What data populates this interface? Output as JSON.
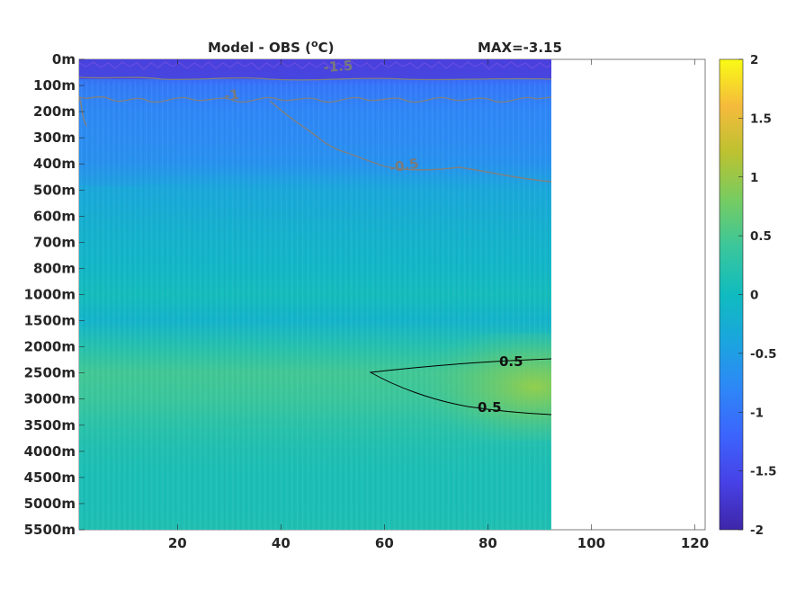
{
  "chart_data": {
    "type": "heatmap",
    "title": "Model - OBS (",
    "title_unit_sup": "o",
    "title_unit_tail": "C)",
    "max_label": "MAX=-3.15",
    "xlim": [
      1,
      122
    ],
    "data_x_extent": [
      1,
      91
    ],
    "xticks": [
      {
        "value": 20,
        "label": "20"
      },
      {
        "value": 40,
        "label": "40"
      },
      {
        "value": 60,
        "label": "60"
      },
      {
        "value": 80,
        "label": "80"
      },
      {
        "value": 100,
        "label": "100"
      },
      {
        "value": 120,
        "label": "120"
      }
    ],
    "ytick_labels": [
      "0m",
      "100m",
      "200m",
      "300m",
      "400m",
      "500m",
      "600m",
      "700m",
      "800m",
      "1000m",
      "1500m",
      "2000m",
      "2500m",
      "3000m",
      "3500m",
      "4000m",
      "4500m",
      "5000m",
      "5500m"
    ],
    "colorbar": {
      "range": [
        -2,
        2
      ],
      "ticks": [
        {
          "value": 2,
          "label": "2"
        },
        {
          "value": 1.5,
          "label": "1.5"
        },
        {
          "value": 1,
          "label": "1"
        },
        {
          "value": 0.5,
          "label": "0.5"
        },
        {
          "value": 0,
          "label": "0"
        },
        {
          "value": -0.5,
          "label": "-0.5"
        },
        {
          "value": -1,
          "label": "-1"
        },
        {
          "value": -1.5,
          "label": "-1.5"
        },
        {
          "value": -2,
          "label": "-2"
        }
      ],
      "colormap": "parula",
      "stops": [
        "#3e26a8",
        "#4741e6",
        "#3c64fd",
        "#2e87f7",
        "#1ba5de",
        "#10bbbf",
        "#3ac69c",
        "#76cc62",
        "#bbc231",
        "#f5ba3c",
        "#f9fb15"
      ]
    },
    "depth_profile": [
      {
        "depth": "0m",
        "value": -1.6
      },
      {
        "depth": "100m",
        "value": -1.0
      },
      {
        "depth": "200m",
        "value": -0.8
      },
      {
        "depth": "300m",
        "value": -0.75
      },
      {
        "depth": "400m",
        "value": -0.65
      },
      {
        "depth": "500m",
        "value": -0.35
      },
      {
        "depth": "600m",
        "value": -0.25
      },
      {
        "depth": "700m",
        "value": -0.15
      },
      {
        "depth": "800m",
        "value": -0.1
      },
      {
        "depth": "1000m",
        "value": 0.05
      },
      {
        "depth": "1500m",
        "value": -0.15
      },
      {
        "depth": "2000m",
        "value": 0.2
      },
      {
        "depth": "2500m",
        "value": 0.45
      },
      {
        "depth": "3000m",
        "value": 0.4
      },
      {
        "depth": "3500m",
        "value": 0.25
      },
      {
        "depth": "4000m",
        "value": 0.15
      },
      {
        "depth": "4500m",
        "value": 0.1
      },
      {
        "depth": "5000m",
        "value": 0.1
      },
      {
        "depth": "5500m",
        "value": 0.15
      }
    ],
    "contours": [
      {
        "level": 0.5,
        "label": "0.5",
        "color": "#000000"
      },
      {
        "level": -0.5,
        "label": "-0.5",
        "color": "#808080"
      },
      {
        "level": -1,
        "label": "-1",
        "color": "#808080"
      },
      {
        "level": -1.5,
        "label": "-1.5",
        "color": "#808080"
      }
    ]
  }
}
